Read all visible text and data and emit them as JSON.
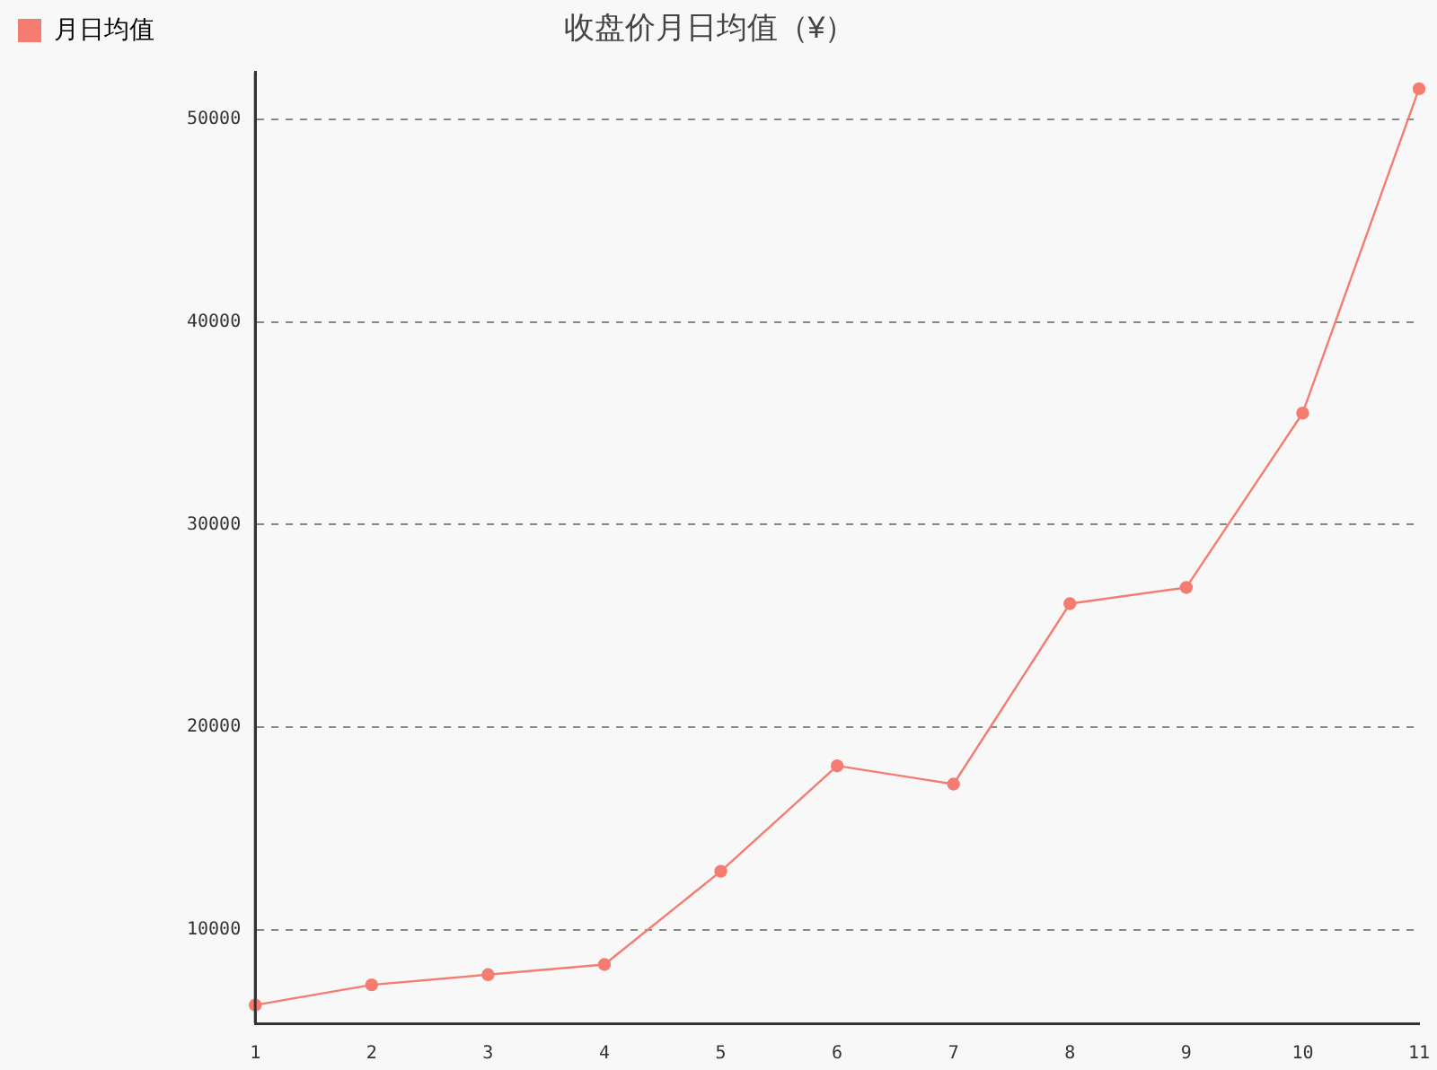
{
  "chart_data": {
    "type": "line",
    "title": "收盘价月日均值（¥）",
    "categories": [
      "1",
      "2",
      "3",
      "4",
      "5",
      "6",
      "7",
      "8",
      "9",
      "10",
      "11"
    ],
    "series": [
      {
        "name": "月日均值",
        "color": "#f47c70",
        "values": [
          6300,
          7300,
          7800,
          8300,
          12900,
          18100,
          17200,
          26100,
          26900,
          35500,
          51500
        ]
      }
    ],
    "ylim": [
      5400,
      52300
    ],
    "yticks": [
      10000,
      20000,
      30000,
      40000,
      50000
    ],
    "grid": "y",
    "legend": "top left",
    "marker": "circle",
    "line_style": "solid"
  }
}
